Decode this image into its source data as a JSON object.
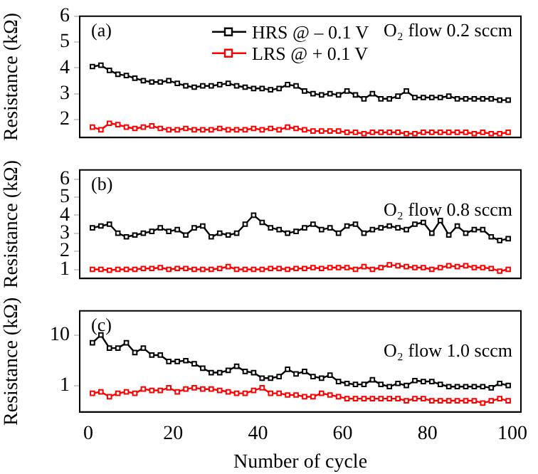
{
  "chart_data": [
    {
      "type": "line",
      "ylabel": "Resistance (kΩ)",
      "annotations": [
        "(a)",
        "O₂ flow 0.2 sccm"
      ],
      "legend": "top",
      "marker": "square",
      "grid": false,
      "tick_labels": "y",
      "xlim": [
        -2,
        102
      ],
      "ylim": [
        1.3,
        6
      ],
      "yticks": [
        2,
        3,
        4,
        5,
        6
      ],
      "x": [
        1,
        3,
        5,
        7,
        9,
        11,
        13,
        15,
        17,
        19,
        21,
        23,
        25,
        27,
        29,
        31,
        33,
        35,
        37,
        39,
        41,
        43,
        45,
        47,
        49,
        51,
        53,
        55,
        57,
        59,
        61,
        63,
        65,
        67,
        69,
        71,
        73,
        75,
        77,
        79,
        81,
        83,
        85,
        87,
        89,
        91,
        93,
        95,
        97,
        99
      ],
      "series": [
        {
          "name": "HRS @ – 0.1 V",
          "color": "#000000",
          "values": [
            4.05,
            4.1,
            3.9,
            3.75,
            3.7,
            3.6,
            3.5,
            3.45,
            3.45,
            3.5,
            3.4,
            3.3,
            3.25,
            3.3,
            3.3,
            3.35,
            3.4,
            3.3,
            3.25,
            3.2,
            3.2,
            3.15,
            3.2,
            3.35,
            3.3,
            3.1,
            3.0,
            2.95,
            3.0,
            2.95,
            3.1,
            2.95,
            2.8,
            3.0,
            2.8,
            2.8,
            2.9,
            3.1,
            2.85,
            2.85,
            2.85,
            2.85,
            2.9,
            2.8,
            2.8,
            2.8,
            2.8,
            2.8,
            2.75,
            2.75
          ]
        },
        {
          "name": "LRS @ + 0.1 V",
          "color": "#ff0000",
          "values": [
            1.7,
            1.6,
            1.85,
            1.8,
            1.7,
            1.65,
            1.7,
            1.75,
            1.65,
            1.6,
            1.6,
            1.65,
            1.6,
            1.6,
            1.6,
            1.65,
            1.6,
            1.6,
            1.6,
            1.65,
            1.6,
            1.65,
            1.6,
            1.7,
            1.65,
            1.6,
            1.55,
            1.55,
            1.55,
            1.55,
            1.5,
            1.5,
            1.45,
            1.5,
            1.5,
            1.5,
            1.5,
            1.45,
            1.45,
            1.5,
            1.5,
            1.5,
            1.5,
            1.5,
            1.5,
            1.45,
            1.5,
            1.45,
            1.45,
            1.5
          ]
        }
      ]
    },
    {
      "type": "line",
      "ylabel": "Resistance (kΩ)",
      "annotations": [
        "(b)",
        "O₂ flow 0.8 sccm"
      ],
      "marker": "square",
      "grid": false,
      "tick_labels": "y",
      "xlim": [
        -2,
        102
      ],
      "ylim": [
        0.5,
        6.5
      ],
      "yticks": [
        1,
        2,
        3,
        4,
        5,
        6
      ],
      "x": [
        1,
        3,
        5,
        7,
        9,
        11,
        13,
        15,
        17,
        19,
        21,
        23,
        25,
        27,
        29,
        31,
        33,
        35,
        37,
        39,
        41,
        43,
        45,
        47,
        49,
        51,
        53,
        55,
        57,
        59,
        61,
        63,
        65,
        67,
        69,
        71,
        73,
        75,
        77,
        79,
        81,
        83,
        85,
        87,
        89,
        91,
        93,
        95,
        97,
        99
      ],
      "series": [
        {
          "color": "#000000",
          "values": [
            3.3,
            3.4,
            3.5,
            3.0,
            2.8,
            2.9,
            3.0,
            3.1,
            3.3,
            3.1,
            3.2,
            2.9,
            3.3,
            3.4,
            2.8,
            3.0,
            2.9,
            3.0,
            3.5,
            4.0,
            3.6,
            3.3,
            3.2,
            3.0,
            3.1,
            3.3,
            3.5,
            3.2,
            3.3,
            3.0,
            3.4,
            3.5,
            3.0,
            3.2,
            3.3,
            3.4,
            3.3,
            3.2,
            3.5,
            3.6,
            3.0,
            3.7,
            2.9,
            3.4,
            3.0,
            3.2,
            3.2,
            2.8,
            2.6,
            2.7
          ]
        },
        {
          "color": "#ff0000",
          "values": [
            1.0,
            1.0,
            0.95,
            1.0,
            1.0,
            1.0,
            1.05,
            1.05,
            1.1,
            1.0,
            1.05,
            1.05,
            1.0,
            1.0,
            1.0,
            1.05,
            1.15,
            1.0,
            1.0,
            1.0,
            1.0,
            1.05,
            1.05,
            1.0,
            1.05,
            1.05,
            1.1,
            1.05,
            1.1,
            1.1,
            1.1,
            1.0,
            1.15,
            1.0,
            1.1,
            1.25,
            1.2,
            1.15,
            1.1,
            1.1,
            1.0,
            1.1,
            1.2,
            1.15,
            1.2,
            1.1,
            1.1,
            1.05,
            0.9,
            1.0
          ]
        }
      ]
    },
    {
      "type": "line",
      "xlabel": "Number of cycle",
      "ylabel": "Resistance (kΩ)",
      "annotations": [
        "(c)",
        "O₂ flow 1.0 sccm"
      ],
      "marker": "square",
      "grid": false,
      "log": "y",
      "xlim": [
        -2,
        102
      ],
      "xticks": [
        0,
        20,
        40,
        60,
        80,
        100
      ],
      "ylim": [
        0.3,
        30
      ],
      "yticks": [
        1,
        10
      ],
      "x": [
        1,
        3,
        5,
        7,
        9,
        11,
        13,
        15,
        17,
        19,
        21,
        23,
        25,
        27,
        29,
        31,
        33,
        35,
        37,
        39,
        41,
        43,
        45,
        47,
        49,
        51,
        53,
        55,
        57,
        59,
        61,
        63,
        65,
        67,
        69,
        71,
        73,
        75,
        77,
        79,
        81,
        83,
        85,
        87,
        89,
        91,
        93,
        95,
        97,
        99
      ],
      "series": [
        {
          "color": "#000000",
          "values": [
            7,
            10,
            5.5,
            5.5,
            7,
            4.5,
            5.5,
            4,
            4,
            3,
            3,
            3.1,
            2.7,
            2.2,
            1.8,
            1.8,
            2.0,
            2.4,
            1.9,
            1.8,
            1.4,
            1.4,
            1.5,
            2.1,
            1.7,
            1.9,
            1.5,
            1.4,
            1.6,
            1.2,
            1.1,
            1.05,
            1.05,
            1.3,
            1.05,
            0.95,
            1.1,
            1.0,
            1.25,
            1.2,
            1.2,
            1.05,
            0.95,
            0.95,
            0.95,
            0.95,
            0.95,
            0.9,
            1.1,
            1.0
          ]
        },
        {
          "color": "#ff0000",
          "values": [
            0.7,
            0.75,
            0.6,
            0.7,
            0.75,
            0.7,
            0.85,
            0.8,
            0.8,
            0.9,
            0.75,
            0.85,
            0.9,
            0.85,
            0.85,
            0.8,
            0.75,
            0.7,
            0.7,
            0.8,
            0.9,
            0.7,
            0.7,
            0.65,
            0.65,
            0.6,
            0.6,
            0.7,
            0.65,
            0.6,
            0.55,
            0.55,
            0.55,
            0.55,
            0.55,
            0.55,
            0.55,
            0.5,
            0.55,
            0.55,
            0.5,
            0.5,
            0.5,
            0.5,
            0.5,
            0.5,
            0.45,
            0.5,
            0.55,
            0.5
          ]
        }
      ]
    }
  ]
}
